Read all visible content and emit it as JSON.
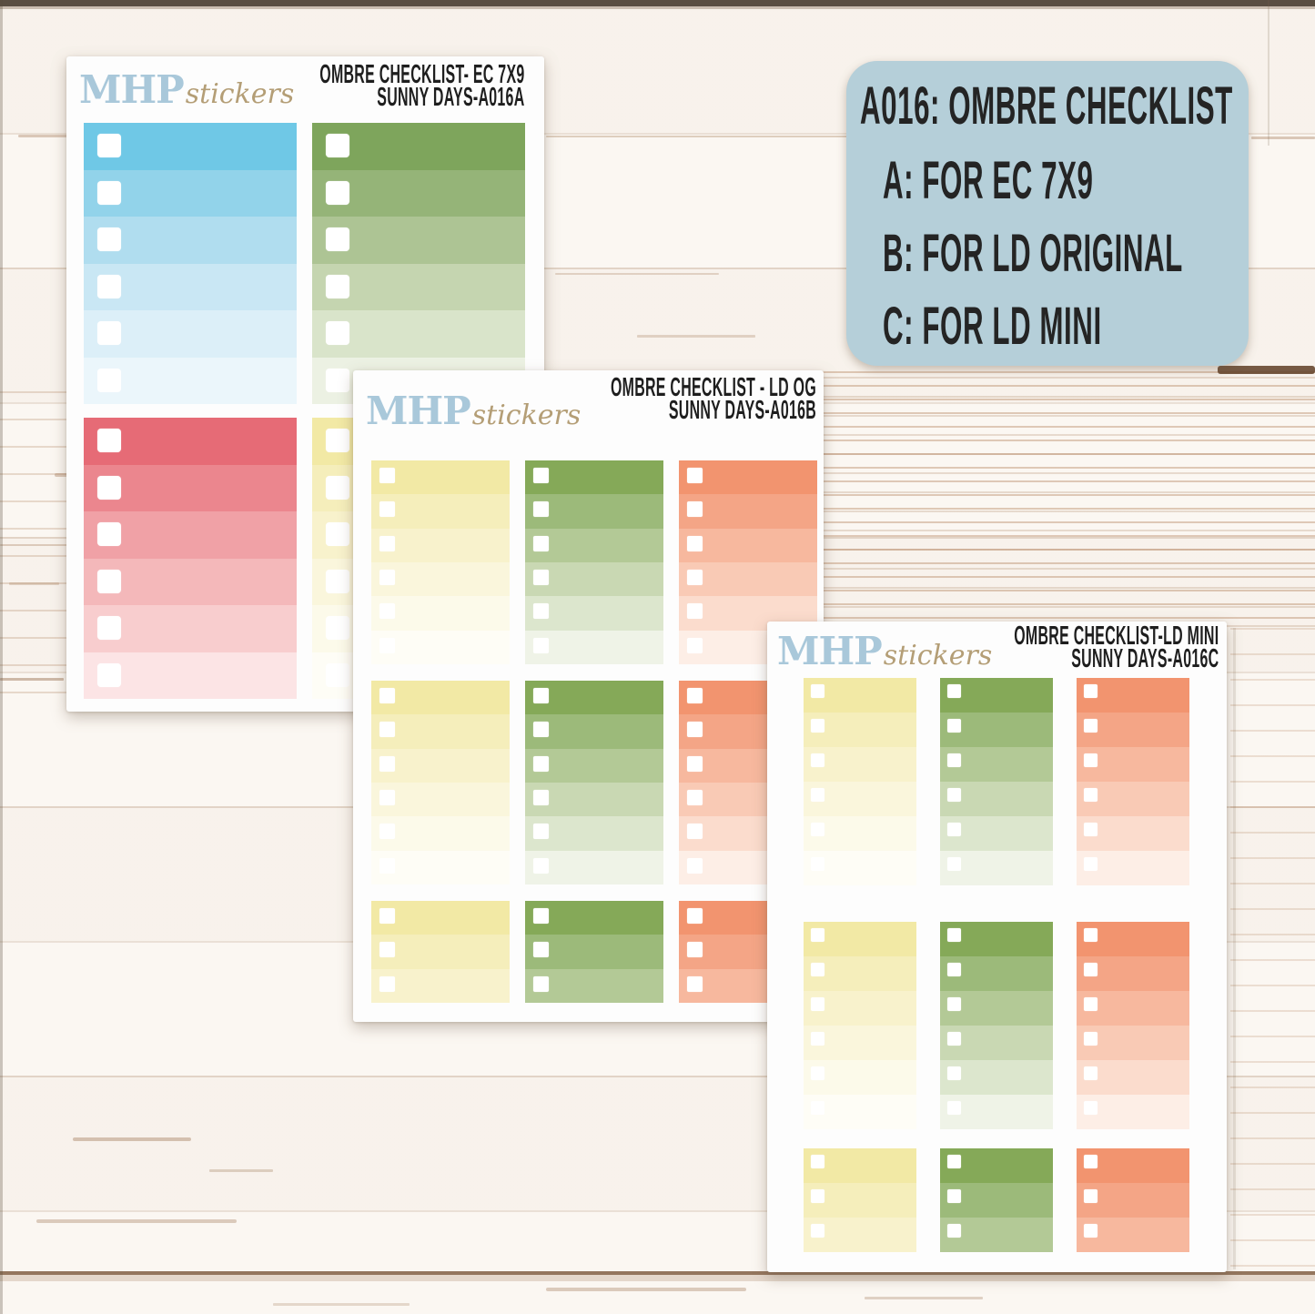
{
  "brand": {
    "serif": "MHP",
    "script": "stickers",
    "serif_color": "#a9c8da",
    "script_color": "#b49e76"
  },
  "info_card": {
    "bg_color": "#b5cfd9",
    "title": "A016: OMBRE CHECKLIST",
    "options": [
      "A: FOR EC 7X9",
      "B: FOR LD ORIGINAL",
      "C: FOR LD MINI"
    ]
  },
  "sheets": [
    {
      "id": "A",
      "title_line1": "OMBRE CHECKLIST- EC 7X9",
      "title_line2": "SUNNY DAYS-A016A",
      "blocks": [
        {
          "palette": "blue",
          "rows": 6
        },
        {
          "palette": "green_a",
          "rows": 6
        },
        {
          "palette": "red",
          "rows": 6
        },
        {
          "palette": "yellow",
          "rows": 6
        }
      ]
    },
    {
      "id": "B",
      "title_line1": "OMBRE CHECKLIST - LD OG",
      "title_line2": "SUNNY DAYS-A016B",
      "blocks": [
        {
          "palette": "yellow",
          "rows": 6
        },
        {
          "palette": "green",
          "rows": 6
        },
        {
          "palette": "coral",
          "rows": 6
        },
        {
          "palette": "yellow",
          "rows": 6
        },
        {
          "palette": "green",
          "rows": 6
        },
        {
          "palette": "coral",
          "rows": 6
        },
        {
          "palette": "yellow",
          "rows": 3
        },
        {
          "palette": "green",
          "rows": 3
        },
        {
          "palette": "coral",
          "rows": 3
        }
      ]
    },
    {
      "id": "C",
      "title_line1": "OMBRE CHECKLIST-LD MINI",
      "title_line2": "SUNNY DAYS-A016C",
      "blocks": [
        {
          "palette": "yellow",
          "rows": 6
        },
        {
          "palette": "green",
          "rows": 6
        },
        {
          "palette": "coral",
          "rows": 6
        },
        {
          "palette": "yellow",
          "rows": 6
        },
        {
          "palette": "green",
          "rows": 6
        },
        {
          "palette": "coral",
          "rows": 6
        },
        {
          "palette": "yellow",
          "rows": 3
        },
        {
          "palette": "green",
          "rows": 3
        },
        {
          "palette": "coral",
          "rows": 3
        }
      ]
    }
  ],
  "palettes": {
    "blue": [
      "#6fc8e6",
      "#92d3ea",
      "#b0ddef",
      "#c9e7f4",
      "#dceff8",
      "#ebf6fb"
    ],
    "green_a": [
      "#7ea55c",
      "#95b478",
      "#adc494",
      "#c5d5b0",
      "#d9e4ca",
      "#ecf1e3"
    ],
    "red": [
      "#e66b76",
      "#eb868e",
      "#f0a1a6",
      "#f4b8ba",
      "#f8cdce",
      "#fce4e5"
    ],
    "yellow": [
      "#f2e9a5",
      "#f5eebb",
      "#f8f2cc",
      "#faf6dc",
      "#fcfaea",
      "#fefdf6"
    ],
    "green": [
      "#85a958",
      "#9cba7a",
      "#b3c996",
      "#c9d8b3",
      "#dce6cd",
      "#eff3e7"
    ],
    "coral": [
      "#f2946f",
      "#f4a586",
      "#f7b89e",
      "#f9cab5",
      "#fbdccd",
      "#fdeee6"
    ]
  }
}
